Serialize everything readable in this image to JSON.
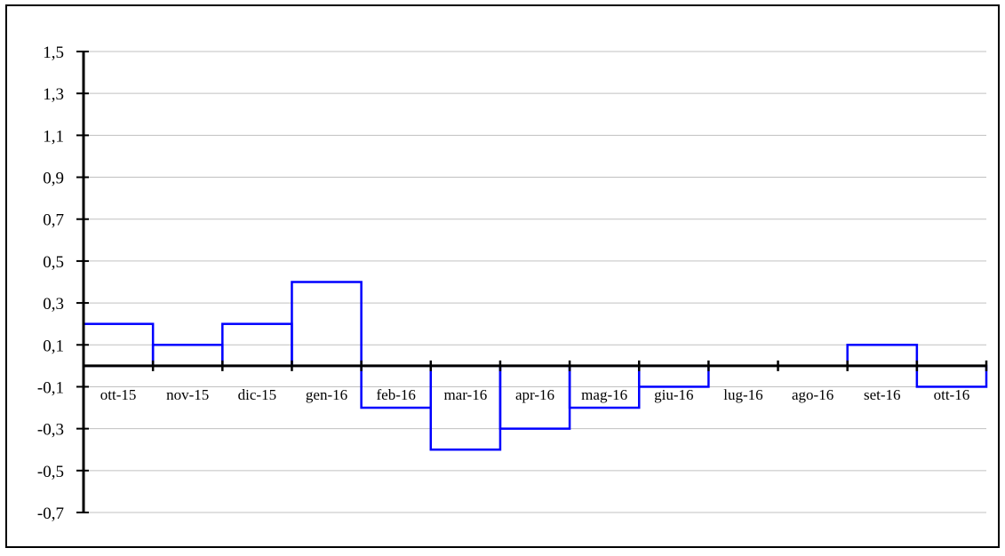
{
  "chart_data": {
    "type": "bar",
    "title": "",
    "xlabel": "",
    "ylabel": "",
    "categories": [
      "ott-15",
      "nov-15",
      "dic-15",
      "gen-16",
      "feb-16",
      "mar-16",
      "apr-16",
      "mag-16",
      "giu-16",
      "lug-16",
      "ago-16",
      "set-16",
      "ott-16"
    ],
    "values": [
      0.2,
      0.1,
      0.2,
      0.4,
      -0.2,
      -0.4,
      -0.3,
      -0.2,
      -0.1,
      0,
      0,
      0.1,
      -0.1
    ],
    "ylim": [
      -0.7,
      1.5
    ],
    "yticks": [
      -0.7,
      -0.5,
      -0.3,
      -0.1,
      0.1,
      0.3,
      0.5,
      0.7,
      0.9,
      1.1,
      1.3,
      1.5
    ],
    "ytick_labels": [
      "-0,7",
      "-0,5",
      "-0,3",
      "-0,1",
      "0,1",
      "0,3",
      "0,5",
      "0,7",
      "0,9",
      "1,1",
      "1,3",
      "1,5"
    ],
    "grid": true,
    "legend": "none",
    "colors": {
      "series": "#0000ff",
      "axis": "#000000",
      "grid": "#c0c0c0",
      "frame": "#000000"
    }
  }
}
